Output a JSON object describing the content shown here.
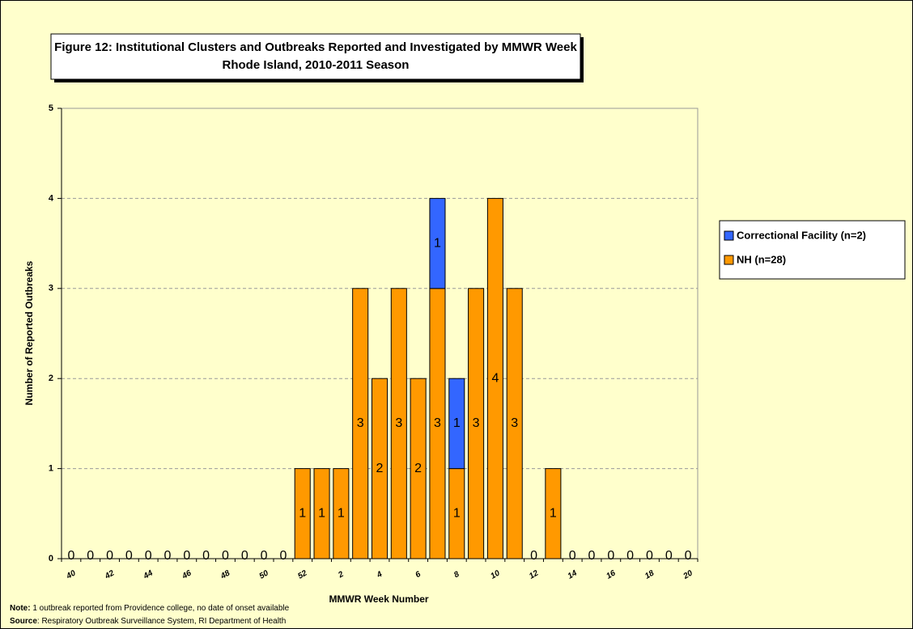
{
  "chart_data": {
    "type": "bar",
    "stacked": true,
    "title": "Figure 12: Institutional Clusters and Outbreaks Reported and Investigated by MMWR Week",
    "subtitle": "Rhode Island, 2010-2011 Season",
    "x_label": "MMWR Week Number",
    "y_label": "Number of Reported Outbreaks",
    "categories": [
      40,
      null,
      42,
      null,
      44,
      null,
      46,
      null,
      48,
      null,
      50,
      null,
      52,
      null,
      2,
      null,
      4,
      null,
      6,
      null,
      8,
      null,
      10,
      null,
      12,
      null,
      14,
      null,
      16,
      null,
      18,
      null,
      20
    ],
    "series": [
      {
        "name": "Correctional Facility (n=2)",
        "color": "#3366ff",
        "values": [
          0,
          0,
          0,
          0,
          0,
          0,
          0,
          0,
          0,
          0,
          0,
          0,
          0,
          0,
          0,
          0,
          0,
          0,
          0,
          1,
          1,
          0,
          0,
          0,
          0,
          0,
          0,
          0,
          0,
          0,
          0,
          0,
          0
        ]
      },
      {
        "name": "NH (n=28)",
        "color": "#ff9900",
        "values": [
          0,
          0,
          0,
          0,
          0,
          0,
          0,
          0,
          0,
          0,
          0,
          0,
          1,
          1,
          1,
          3,
          2,
          3,
          2,
          3,
          1,
          3,
          4,
          3,
          0,
          1,
          0,
          0,
          0,
          0,
          0,
          0,
          0
        ]
      }
    ],
    "ylim": [
      0,
      5
    ],
    "yticks": [
      0,
      1,
      2,
      3,
      4,
      5
    ],
    "grid": true,
    "legend": "right",
    "note_label": "Note:",
    "note_text": " 1 outbreak reported from Providence college, no date of onset available",
    "source_label": "Source",
    "source_text": ": Respiratory Outbreak Surveillance System, RI Department of Health"
  }
}
